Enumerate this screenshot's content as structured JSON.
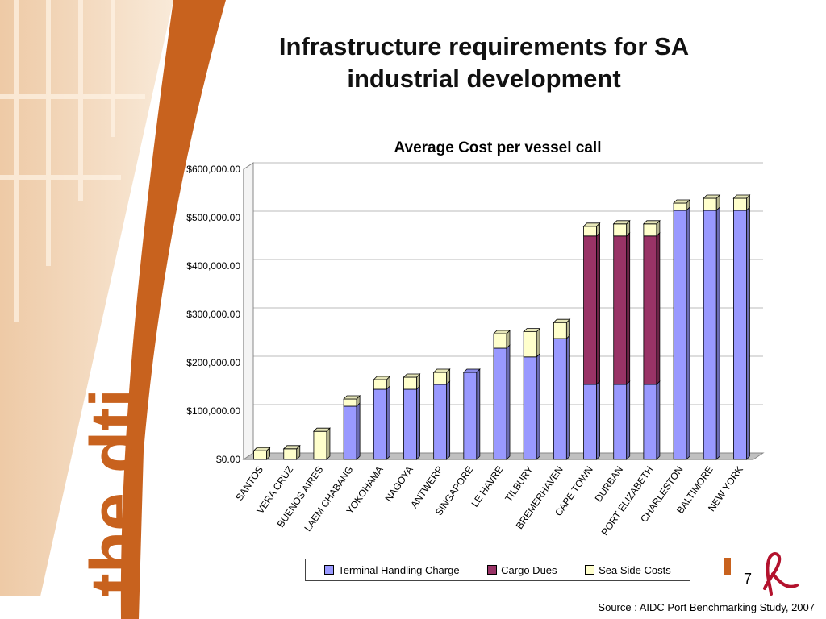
{
  "slide": {
    "title_line1": "Infrastructure requirements for SA",
    "title_line2": "industrial development",
    "page_number": "7",
    "source": "Source : AIDC Port Benchmarking Study, 2007",
    "logo_text": "the dti"
  },
  "colors": {
    "terminal": "#9999ff",
    "cargo": "#993366",
    "seaside": "#ffffcc",
    "brand_orange": "#c8621e"
  },
  "chart_data": {
    "type": "bar",
    "stacked": true,
    "title": "Average Cost per vessel call",
    "categories": [
      "SANTOS",
      "VERA CRUZ",
      "BUENOS AIRES",
      "LAEM CHABANG",
      "YOKOHAMA",
      "NAGOYA",
      "ANTWERP",
      "SINGAPORE",
      "LE HAVRE",
      "TILBURY",
      "BREMERHAVEN",
      "CAPE TOWN",
      "DURBAN",
      "PORT ELIZABETH",
      "CHARLESTON",
      "BALTIMORE",
      "NEW YORK"
    ],
    "series": [
      {
        "name": "Terminal Handling Charge",
        "values": [
          0,
          0,
          0,
          110000,
          145000,
          145000,
          155000,
          180000,
          230000,
          212000,
          250000,
          155000,
          155000,
          155000,
          515000,
          515000,
          515000
        ]
      },
      {
        "name": "Cargo Dues",
        "values": [
          0,
          0,
          0,
          0,
          0,
          0,
          0,
          0,
          0,
          0,
          0,
          307000,
          307000,
          307000,
          0,
          0,
          0
        ]
      },
      {
        "name": "Sea Side Costs",
        "values": [
          18000,
          22000,
          58000,
          15000,
          20000,
          25000,
          25000,
          0,
          30000,
          52000,
          33000,
          20000,
          25000,
          25000,
          15000,
          25000,
          25000
        ]
      }
    ],
    "ylim": [
      0,
      600000
    ],
    "yticks": [
      "$0.00",
      "$100,000.00",
      "$200,000.00",
      "$300,000.00",
      "$400,000.00",
      "$500,000.00",
      "$600,000.00"
    ],
    "grid": true,
    "legend_position": "bottom"
  }
}
